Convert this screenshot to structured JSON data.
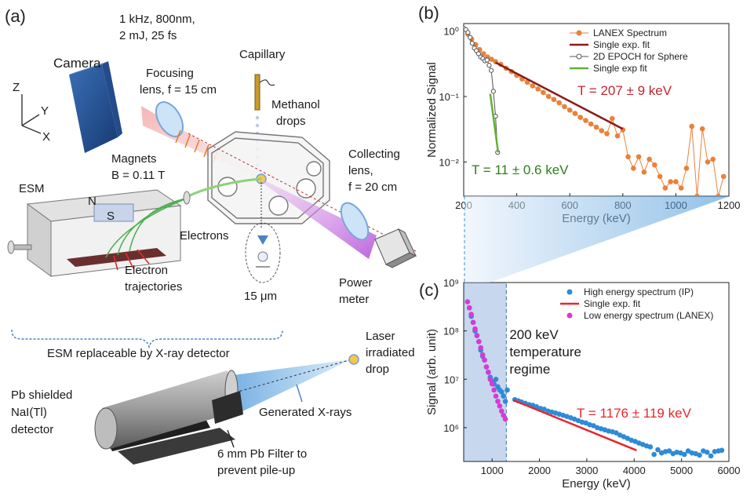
{
  "panels": {
    "a": "(a)",
    "b": "(b)",
    "c": "(c)"
  },
  "setup": {
    "laser_line1": "1 kHz, 800nm,",
    "laser_line2": "2 mJ, 25 fs",
    "camera": "Camera",
    "focusing_line1": "Focusing",
    "focusing_line2": "lens, f = 15 cm",
    "capillary": "Capillary",
    "methanol_line1": "Methanol",
    "methanol_line2": "drops",
    "axis_z": "Z",
    "axis_y": "Y",
    "axis_x": "X",
    "magnets_line1": "Magnets",
    "magnets_line2": "B = 0.11 T",
    "esm": "ESM",
    "north": "N",
    "south": "S",
    "electrons": "Electrons",
    "trajectories_line1": "Electron",
    "trajectories_line2": "trajectories",
    "droplet_size": "15 μm",
    "collecting_line1": "Collecting",
    "collecting_line2": "lens,",
    "collecting_line3": "f = 20 cm",
    "power_line1": "Power",
    "power_line2": "meter",
    "replaceable": "ESM replaceable by X-ray detector",
    "laser_drop_line1": "Laser",
    "laser_drop_line2": "irradiated",
    "laser_drop_line3": "drop",
    "detector_line1": "Pb shielded",
    "detector_line2": "NaI(Tl)",
    "detector_line3": "detector",
    "xrays": "Generated X-rays",
    "filter_line1": "6 mm Pb Filter to",
    "filter_line2": "prevent pile-up"
  },
  "chart_data": [
    {
      "panel": "(b)",
      "type": "line",
      "xlabel": "Energy (keV)",
      "ylabel": "Normalized Signal",
      "xlim": [
        200,
        1200
      ],
      "ylim": [
        0.003,
        1.3
      ],
      "yscale": "log",
      "xticks": [
        200,
        400,
        600,
        800,
        1000,
        1200
      ],
      "ytick_labels": [
        "10⁰",
        "10⁻¹",
        "10⁻²"
      ],
      "ytick_values": [
        1,
        0.1,
        0.01
      ],
      "legend": "top-right",
      "series": [
        {
          "name": "LANEX Spectrum",
          "color": "#e8823a",
          "marker": "filled-circle",
          "x": [
            200,
            215,
            230,
            245,
            260,
            275,
            290,
            305,
            320,
            340,
            360,
            380,
            400,
            420,
            440,
            460,
            480,
            500,
            520,
            540,
            560,
            580,
            600,
            620,
            640,
            660,
            680,
            700,
            720,
            740,
            760,
            780,
            800,
            820,
            840,
            860,
            880,
            900,
            920,
            940,
            960,
            980,
            1000,
            1020,
            1040,
            1060,
            1080,
            1100,
            1120,
            1140,
            1160,
            1180
          ],
          "y": [
            1.05,
            0.9,
            0.75,
            0.62,
            0.52,
            0.45,
            0.4,
            0.37,
            0.34,
            0.31,
            0.27,
            0.24,
            0.21,
            0.185,
            0.165,
            0.145,
            0.13,
            0.115,
            0.1,
            0.09,
            0.08,
            0.07,
            0.062,
            0.055,
            0.048,
            0.043,
            0.038,
            0.034,
            0.03,
            0.027,
            0.046,
            0.025,
            0.031,
            0.012,
            0.008,
            0.012,
            0.007,
            0.011,
            0.009,
            0.006,
            0.004,
            0.005,
            0.005,
            0.004,
            0.008,
            0.035,
            0.003,
            0.032,
            0.01,
            0.011,
            0.003,
            0.006
          ]
        },
        {
          "name": "Single exp. fit",
          "color": "#8b1a1a",
          "marker": "none",
          "x": [
            320,
            800
          ],
          "y": [
            0.33,
            0.032
          ]
        },
        {
          "name": "2D EPOCH for Sphere",
          "color": "#555555",
          "marker": "open-circle",
          "x": [
            200,
            208,
            216,
            224,
            232,
            240,
            248,
            256,
            264,
            272,
            280,
            288,
            296,
            304,
            312,
            320,
            328
          ],
          "y": [
            1.1,
            1.05,
            0.95,
            0.8,
            0.65,
            0.55,
            0.5,
            0.45,
            0.4,
            0.38,
            0.35,
            0.36,
            0.3,
            0.25,
            0.12,
            0.05,
            0.014
          ]
        },
        {
          "name": "Single exp fit",
          "color": "#66b032",
          "marker": "none",
          "x": [
            300,
            330
          ],
          "y": [
            0.11,
            0.014
          ]
        }
      ],
      "annotations": [
        {
          "text": "T = 207 ± 9 keV",
          "color": "#c0262d"
        },
        {
          "text": "T = 11 ± 0.6 keV",
          "color": "#2e7d1b"
        }
      ]
    },
    {
      "panel": "(c)",
      "type": "scatter",
      "xlabel": "Energy (keV)",
      "ylabel": "Signal (arb. unit)",
      "xlim": [
        400,
        6000
      ],
      "ylim": [
        200000,
        1000000000
      ],
      "yscale": "log",
      "xticks": [
        1000,
        2000,
        3000,
        4000,
        5000,
        6000
      ],
      "ytick_labels": [
        "10⁹",
        "10⁸",
        "10⁷",
        "10⁶"
      ],
      "ytick_values": [
        1000000000,
        100000000,
        10000000,
        1000000
      ],
      "legend": "top-right",
      "shaded_region": {
        "x": [
          400,
          1300
        ],
        "label_line1": "200 keV",
        "label_line2": "temperature",
        "label_line3": "regime"
      },
      "series": [
        {
          "name": "High energy spectrum (IP)",
          "color": "#2e8bd6",
          "marker": "filled-circle",
          "x": [
            520,
            560,
            600,
            640,
            680,
            720,
            760,
            800,
            840,
            880,
            920,
            960,
            1000,
            1040,
            1080,
            1120,
            1160,
            1200,
            1240,
            1280,
            1320,
            1480,
            1550,
            1620,
            1700,
            1780,
            1860,
            1940,
            2020,
            2100,
            2180,
            2260,
            2340,
            2420,
            2500,
            2580,
            2660,
            2740,
            2820,
            2900,
            2980,
            3060,
            3140,
            3220,
            3300,
            3380,
            3460,
            3540,
            3620,
            3700,
            3780,
            3860,
            3940,
            4020,
            4100,
            4180,
            4260,
            4340,
            4420,
            4500,
            4580,
            4660,
            4740,
            4820,
            4900,
            4980,
            5060,
            5140,
            5220,
            5300,
            5380,
            5460,
            5540,
            5620,
            5700,
            5780,
            5850
          ],
          "y": [
            300000000,
            200000000,
            150000000,
            100000000,
            80000000,
            60000000,
            40000000,
            30000000,
            25000000,
            18000000,
            14000000,
            11000000,
            9000000,
            8000000,
            10000000,
            7000000,
            6000000,
            5500000,
            4500000,
            3500000,
            6000000,
            3800000,
            3600000,
            3400000,
            3200000,
            3000000,
            2900000,
            2700000,
            2500000,
            2400000,
            2200000,
            2100000,
            2000000,
            1900000,
            1800000,
            1700000,
            1600000,
            1500000,
            1400000,
            1300000,
            1250000,
            1150000,
            1100000,
            1000000,
            950000,
            900000,
            850000,
            820000,
            780000,
            700000,
            650000,
            600000,
            550000,
            520000,
            480000,
            450000,
            420000,
            400000,
            280000,
            350000,
            300000,
            320000,
            330000,
            290000,
            310000,
            300000,
            280000,
            330000,
            300000,
            290000,
            270000,
            330000,
            310000,
            260000,
            320000,
            330000,
            340000
          ]
        },
        {
          "name": "Single exp. fit",
          "color": "#e8262d",
          "marker": "none",
          "x": [
            1450,
            4050
          ],
          "y": [
            3700000,
            340000
          ]
        },
        {
          "name": "Low energy spectrum (LANEX)",
          "color": "#d63ad6",
          "marker": "filled-circle",
          "x": [
            480,
            520,
            560,
            600,
            640,
            680,
            720,
            760,
            800,
            840,
            880,
            920,
            960,
            1000,
            1040,
            1080,
            1120,
            1160,
            1200,
            1240,
            1280
          ],
          "y": [
            400000000,
            300000000,
            220000000,
            150000000,
            110000000,
            80000000,
            60000000,
            45000000,
            32000000,
            25000000,
            18000000,
            14000000,
            10000000,
            8000000,
            6000000,
            4500000,
            3500000,
            2800000,
            2200000,
            1800000,
            1500000
          ]
        }
      ],
      "annotations": [
        {
          "text": "T = 1176 ± 119 keV",
          "color": "#e8262d"
        }
      ]
    }
  ]
}
